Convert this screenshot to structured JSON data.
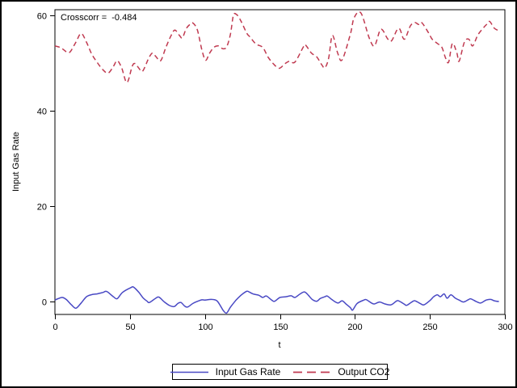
{
  "figure": {
    "annotation": "Crosscorr =  -0.484"
  },
  "chart_data": {
    "type": "line",
    "title": "",
    "xlabel": "t",
    "ylabel": "Input Gas Rate",
    "xlim": [
      0,
      300
    ],
    "ylim": [
      -2.71,
      61.19
    ],
    "xticks": [
      0,
      50,
      100,
      150,
      200,
      250,
      300
    ],
    "yticks": [
      0,
      20,
      40,
      60
    ],
    "grid": false,
    "legend_position": "bottom-center-boxed",
    "frame_color": "#000000",
    "annotation": "Crosscorr =  -0.484",
    "series": [
      {
        "name": "Input Gas Rate",
        "style": "solid",
        "color": "#4949c4",
        "points": [
          [
            0,
            0.3
          ],
          [
            3,
            0.7
          ],
          [
            5,
            0.85
          ],
          [
            7.5,
            0.45
          ],
          [
            11,
            -0.7
          ],
          [
            14,
            -1.4
          ],
          [
            17.5,
            -0.3
          ],
          [
            21,
            1
          ],
          [
            24.5,
            1.45
          ],
          [
            28,
            1.6
          ],
          [
            32,
            1.9
          ],
          [
            34.5,
            2.1
          ],
          [
            39,
            1
          ],
          [
            41.5,
            0.6
          ],
          [
            45,
            1.9
          ],
          [
            50.5,
            2.9
          ],
          [
            52.5,
            3
          ],
          [
            56,
            1.9
          ],
          [
            59,
            0.7
          ],
          [
            61.5,
            0.05
          ],
          [
            63,
            -0.2
          ],
          [
            67.5,
            0.75
          ],
          [
            69.5,
            0.9
          ],
          [
            73,
            -0.1
          ],
          [
            76.5,
            -0.85
          ],
          [
            79.5,
            -1.05
          ],
          [
            82,
            -0.4
          ],
          [
            84,
            -0.2
          ],
          [
            86.5,
            -0.95
          ],
          [
            88.5,
            -1.15
          ],
          [
            92,
            -0.4
          ],
          [
            95.5,
            0.1
          ],
          [
            98,
            0.35
          ],
          [
            100,
            0.3
          ],
          [
            104.5,
            0.45
          ],
          [
            108,
            0.15
          ],
          [
            110.5,
            -1
          ],
          [
            112.5,
            -2
          ],
          [
            114.5,
            -2.4
          ],
          [
            117,
            -1.2
          ],
          [
            120.5,
            0.2
          ],
          [
            124,
            1.3
          ],
          [
            127,
            2
          ],
          [
            128.5,
            2.15
          ],
          [
            132,
            1.6
          ],
          [
            136,
            1.3
          ],
          [
            138.5,
            0.85
          ],
          [
            141,
            1.15
          ],
          [
            144.5,
            0.3
          ],
          [
            146.5,
            0.05
          ],
          [
            150,
            0.85
          ],
          [
            154,
            1
          ],
          [
            157.5,
            1.2
          ],
          [
            160,
            0.85
          ],
          [
            163.5,
            1.6
          ],
          [
            166.5,
            2
          ],
          [
            169,
            1.3
          ],
          [
            171.5,
            0.45
          ],
          [
            174.5,
            0.05
          ],
          [
            177,
            0.65
          ],
          [
            180,
            1
          ],
          [
            181.5,
            1.15
          ],
          [
            184.5,
            0.45
          ],
          [
            187,
            -0.1
          ],
          [
            189,
            -0.3
          ],
          [
            191.5,
            0.15
          ],
          [
            194,
            -0.5
          ],
          [
            197,
            -1.3
          ],
          [
            198.5,
            -1.8
          ],
          [
            201.5,
            -0.4
          ],
          [
            206,
            0.3
          ],
          [
            207.5,
            0.4
          ],
          [
            211,
            -0.3
          ],
          [
            213,
            -0.5
          ],
          [
            216.5,
            -0.1
          ],
          [
            220,
            -0.5
          ],
          [
            224,
            -0.7
          ],
          [
            227.5,
            0.05
          ],
          [
            229,
            0.15
          ],
          [
            233,
            -0.55
          ],
          [
            234.5,
            -0.8
          ],
          [
            238,
            -0.1
          ],
          [
            240,
            0.15
          ],
          [
            243.5,
            -0.4
          ],
          [
            246,
            -0.7
          ],
          [
            250,
            0.2
          ],
          [
            252.5,
            1
          ],
          [
            255,
            1.4
          ],
          [
            257,
            1
          ],
          [
            259.5,
            1.6
          ],
          [
            261.5,
            0.7
          ],
          [
            264,
            1.4
          ],
          [
            267,
            0.7
          ],
          [
            269.5,
            0.3
          ],
          [
            272.5,
            -0.1
          ],
          [
            276,
            0.45
          ],
          [
            277.5,
            0.55
          ],
          [
            281.5,
            -0.1
          ],
          [
            284,
            -0.3
          ],
          [
            287.5,
            0.3
          ],
          [
            290.5,
            0.45
          ],
          [
            293,
            0.15
          ],
          [
            296,
            0
          ]
        ]
      },
      {
        "name": "Output CO2",
        "style": "dashed",
        "color": "#c03a50",
        "points": [
          [
            0,
            53.6
          ],
          [
            4,
            53.2
          ],
          [
            7.5,
            52.4
          ],
          [
            10,
            52.3
          ],
          [
            14,
            54.4
          ],
          [
            17.5,
            56.2
          ],
          [
            21,
            54.4
          ],
          [
            24.5,
            51.9
          ],
          [
            28,
            50.2
          ],
          [
            32,
            48.6
          ],
          [
            35.5,
            47.9
          ],
          [
            39,
            49.3
          ],
          [
            41.5,
            50.5
          ],
          [
            44.5,
            49
          ],
          [
            48,
            45.9
          ],
          [
            51.5,
            49.3
          ],
          [
            53.5,
            49.9
          ],
          [
            56,
            48.9
          ],
          [
            58.5,
            48.3
          ],
          [
            62.5,
            51
          ],
          [
            65,
            52.1
          ],
          [
            67.5,
            51.3
          ],
          [
            70.5,
            50.5
          ],
          [
            74,
            53.3
          ],
          [
            77.5,
            55.8
          ],
          [
            80,
            56.9
          ],
          [
            83,
            55.8
          ],
          [
            85,
            55.3
          ],
          [
            87.5,
            57.2
          ],
          [
            90,
            58.1
          ],
          [
            92,
            58.4
          ],
          [
            95,
            56.9
          ],
          [
            98,
            52.7
          ],
          [
            100.5,
            50.6
          ],
          [
            103,
            52
          ],
          [
            106,
            53.3
          ],
          [
            109,
            53.6
          ],
          [
            112,
            53
          ],
          [
            114.5,
            53.4
          ],
          [
            117,
            56
          ],
          [
            119,
            60
          ],
          [
            121,
            60.2
          ],
          [
            123,
            59.4
          ],
          [
            125,
            58.2
          ],
          [
            128,
            56.2
          ],
          [
            130,
            55.5
          ],
          [
            134,
            54
          ],
          [
            138.5,
            53.3
          ],
          [
            142,
            51.3
          ],
          [
            145.5,
            49.9
          ],
          [
            149.5,
            48.9
          ],
          [
            153.5,
            49.9
          ],
          [
            156.5,
            50.4
          ],
          [
            160,
            50.2
          ],
          [
            165.5,
            53.3
          ],
          [
            167,
            53.8
          ],
          [
            171,
            52.1
          ],
          [
            174.5,
            51.3
          ],
          [
            178,
            49.6
          ],
          [
            180,
            49
          ],
          [
            182.5,
            51
          ],
          [
            185,
            55.8
          ],
          [
            188.5,
            52.1
          ],
          [
            191.5,
            50.7
          ],
          [
            197,
            56.1
          ],
          [
            199.5,
            59.5
          ],
          [
            204,
            60.5
          ],
          [
            209.5,
            55.3
          ],
          [
            213,
            53.6
          ],
          [
            216.5,
            56.7
          ],
          [
            218.5,
            56.9
          ],
          [
            222,
            55
          ],
          [
            224.5,
            54.7
          ],
          [
            228,
            56.9
          ],
          [
            230,
            57.1
          ],
          [
            233,
            55
          ],
          [
            237,
            57.8
          ],
          [
            240,
            58.5
          ],
          [
            242.5,
            58.1
          ],
          [
            244.5,
            58.5
          ],
          [
            249,
            56.4
          ],
          [
            251.5,
            55
          ],
          [
            255,
            54.1
          ],
          [
            258,
            53.3
          ],
          [
            260.5,
            51
          ],
          [
            262.5,
            50.2
          ],
          [
            265,
            54.1
          ],
          [
            268,
            52.1
          ],
          [
            269.5,
            50.4
          ],
          [
            273,
            54.4
          ],
          [
            276,
            55
          ],
          [
            278.5,
            53.6
          ],
          [
            282,
            55.9
          ],
          [
            286,
            57.5
          ],
          [
            288.5,
            58.3
          ],
          [
            290,
            58.7
          ],
          [
            293,
            57.3
          ],
          [
            296,
            56.8
          ]
        ]
      }
    ]
  }
}
